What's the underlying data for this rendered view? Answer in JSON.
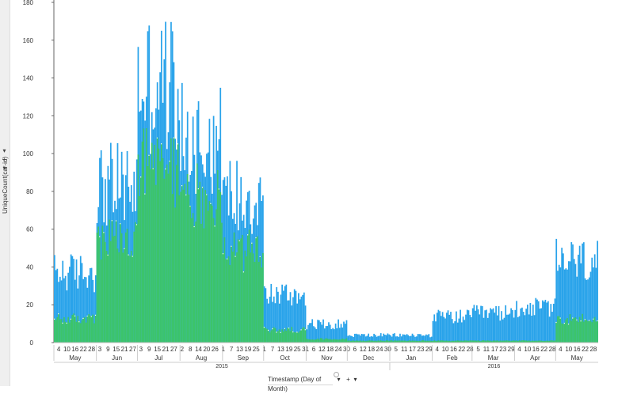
{
  "chart_data": {
    "type": "bar",
    "stacked": true,
    "ylabel": "UniqueCount(car-id)",
    "xlabel": "Timestamp (Day of Month)",
    "ylim": [
      0,
      180
    ],
    "yticks": [
      0,
      20,
      40,
      60,
      80,
      100,
      120,
      140,
      160,
      180
    ],
    "grid": false,
    "legend": "none",
    "colors": {
      "blue_series": "#29a3ea",
      "green_series": "#3cc46a",
      "axis": "#666666",
      "marker": "#ffffff"
    },
    "x_day_ticks": [
      {
        "label": "4",
        "month": "May"
      },
      {
        "label": "10",
        "month": "May"
      },
      {
        "label": "16",
        "month": "May"
      },
      {
        "label": "22",
        "month": "May"
      },
      {
        "label": "28",
        "month": "May"
      },
      {
        "label": "3",
        "month": "Jun"
      },
      {
        "label": "9",
        "month": "Jun"
      },
      {
        "label": "15",
        "month": "Jun"
      },
      {
        "label": "21",
        "month": "Jun"
      },
      {
        "label": "27",
        "month": "Jun"
      },
      {
        "label": "3",
        "month": "Jul"
      },
      {
        "label": "9",
        "month": "Jul"
      },
      {
        "label": "15",
        "month": "Jul"
      },
      {
        "label": "21",
        "month": "Jul"
      },
      {
        "label": "27",
        "month": "Jul"
      },
      {
        "label": "2",
        "month": "Aug"
      },
      {
        "label": "8",
        "month": "Aug"
      },
      {
        "label": "14",
        "month": "Aug"
      },
      {
        "label": "20",
        "month": "Aug"
      },
      {
        "label": "26",
        "month": "Aug"
      },
      {
        "label": "1",
        "month": "Sep"
      },
      {
        "label": "7",
        "month": "Sep"
      },
      {
        "label": "13",
        "month": "Sep"
      },
      {
        "label": "19",
        "month": "Sep"
      },
      {
        "label": "25",
        "month": "Sep"
      },
      {
        "label": "1",
        "month": "Oct"
      },
      {
        "label": "7",
        "month": "Oct"
      },
      {
        "label": "13",
        "month": "Oct"
      },
      {
        "label": "19",
        "month": "Oct"
      },
      {
        "label": "25",
        "month": "Oct"
      },
      {
        "label": "31",
        "month": "Oct"
      },
      {
        "label": "6",
        "month": "Nov"
      },
      {
        "label": "12",
        "month": "Nov"
      },
      {
        "label": "18",
        "month": "Nov"
      },
      {
        "label": "24",
        "month": "Nov"
      },
      {
        "label": "30",
        "month": "Nov"
      },
      {
        "label": "6",
        "month": "Dec"
      },
      {
        "label": "12",
        "month": "Dec"
      },
      {
        "label": "18",
        "month": "Dec"
      },
      {
        "label": "24",
        "month": "Dec"
      },
      {
        "label": "30",
        "month": "Dec"
      },
      {
        "label": "5",
        "month": "Jan"
      },
      {
        "label": "11",
        "month": "Jan"
      },
      {
        "label": "17",
        "month": "Jan"
      },
      {
        "label": "23",
        "month": "Jan"
      },
      {
        "label": "29",
        "month": "Jan"
      },
      {
        "label": "4",
        "month": "Feb"
      },
      {
        "label": "10",
        "month": "Feb"
      },
      {
        "label": "16",
        "month": "Feb"
      },
      {
        "label": "22",
        "month": "Feb"
      },
      {
        "label": "28",
        "month": "Feb"
      },
      {
        "label": "5",
        "month": "Mar"
      },
      {
        "label": "11",
        "month": "Mar"
      },
      {
        "label": "17",
        "month": "Mar"
      },
      {
        "label": "23",
        "month": "Mar"
      },
      {
        "label": "29",
        "month": "Mar"
      },
      {
        "label": "4",
        "month": "Apr"
      },
      {
        "label": "10",
        "month": "Apr"
      },
      {
        "label": "16",
        "month": "Apr"
      },
      {
        "label": "22",
        "month": "Apr"
      },
      {
        "label": "28",
        "month": "Apr"
      },
      {
        "label": "4",
        "month": "May"
      },
      {
        "label": "10",
        "month": "May"
      },
      {
        "label": "16",
        "month": "May"
      },
      {
        "label": "22",
        "month": "May"
      },
      {
        "label": "28",
        "month": "May"
      }
    ],
    "months": [
      "May",
      "Jun",
      "Jul",
      "Aug",
      "Sep",
      "Oct",
      "Nov",
      "Dec",
      "Jan",
      "Feb",
      "Mar",
      "Apr",
      "May"
    ],
    "years": [
      "2015",
      "2016"
    ],
    "series": [
      {
        "name": "",
        "color": "#3cc46a",
        "monthly_approx": {
          "May 2015": 13,
          "Jun 2015": 55,
          "Jul 2015": 95,
          "Aug 2015": 80,
          "Sep 2015": 50,
          "Oct 2015": 7,
          "Nov 2015": 2,
          "Dec 2015": 1,
          "Jan 2016": 1,
          "Feb 2016": 1,
          "Mar 2016": 1,
          "Apr 2016": 1,
          "May 2016": 13
        }
      },
      {
        "name": "",
        "color": "#29a3ea",
        "monthly_approx": {
          "May 2015": 38,
          "Jun 2015": 85,
          "Jul 2015": 140,
          "Aug 2015": 110,
          "Sep 2015": 80,
          "Oct 2015": 26,
          "Nov 2015": 10,
          "Dec 2015": 4,
          "Jan 2016": 4,
          "Feb 2016": 14,
          "Mar 2016": 16,
          "Apr 2016": 19,
          "May 2016": 44
        }
      }
    ]
  },
  "ui": {
    "axis_title": "UniqueCount(car-id)",
    "x_axis_title": "Timestamp (Day of Month)",
    "ctrl_arrow": "▾",
    "ctrl_plus": "+"
  }
}
